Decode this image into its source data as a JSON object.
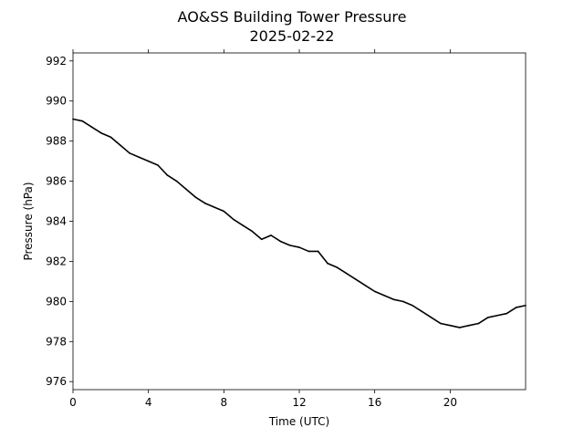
{
  "chart_data": {
    "type": "line",
    "title": "AO&SS Building Tower Pressure",
    "subtitle": "2025-02-22",
    "xlabel": "Time (UTC)",
    "ylabel": "Pressure (hPa)",
    "xlim": [
      0,
      24
    ],
    "ylim": [
      975.6,
      992.4
    ],
    "xticks": [
      0,
      4,
      8,
      12,
      16,
      20
    ],
    "xtick_labels": [
      "0",
      "4",
      "8",
      "12",
      "16",
      "20"
    ],
    "yticks": [
      976,
      978,
      980,
      982,
      984,
      986,
      988,
      990,
      992
    ],
    "ytick_labels": [
      "976",
      "978",
      "980",
      "982",
      "984",
      "986",
      "988",
      "990",
      "992"
    ],
    "grid": false,
    "line_color": "#000000",
    "series": [
      {
        "x": [
          0,
          0.5,
          1.0,
          1.5,
          2.0,
          2.5,
          3.0,
          3.5,
          4.0,
          4.5,
          5.0,
          5.5,
          6.0,
          6.5,
          7.0,
          7.5,
          8.0,
          8.5,
          9.0,
          9.5,
          10.0,
          10.5,
          11.0,
          11.5,
          12.0,
          12.5,
          13.0,
          13.5,
          14.0,
          14.5,
          15.0,
          15.5,
          16.0,
          16.5,
          17.0,
          17.5,
          18.0,
          18.5,
          19.0,
          19.5,
          20.0,
          20.5,
          21.0,
          21.5,
          22.0,
          22.5,
          23.0,
          23.5,
          24.0
        ],
        "y": [
          989.1,
          989.0,
          988.7,
          988.4,
          988.2,
          987.8,
          987.4,
          987.2,
          987.0,
          986.8,
          986.3,
          986.0,
          985.6,
          985.2,
          984.9,
          984.7,
          984.5,
          984.1,
          983.8,
          983.5,
          983.1,
          983.3,
          983.0,
          982.8,
          982.7,
          982.5,
          982.5,
          981.9,
          981.7,
          981.4,
          981.1,
          980.8,
          980.5,
          980.3,
          980.1,
          980.0,
          979.8,
          979.5,
          979.2,
          978.9,
          978.8,
          978.7,
          978.8,
          978.9,
          979.2,
          979.3,
          979.4,
          979.7,
          979.8
        ]
      }
    ]
  }
}
